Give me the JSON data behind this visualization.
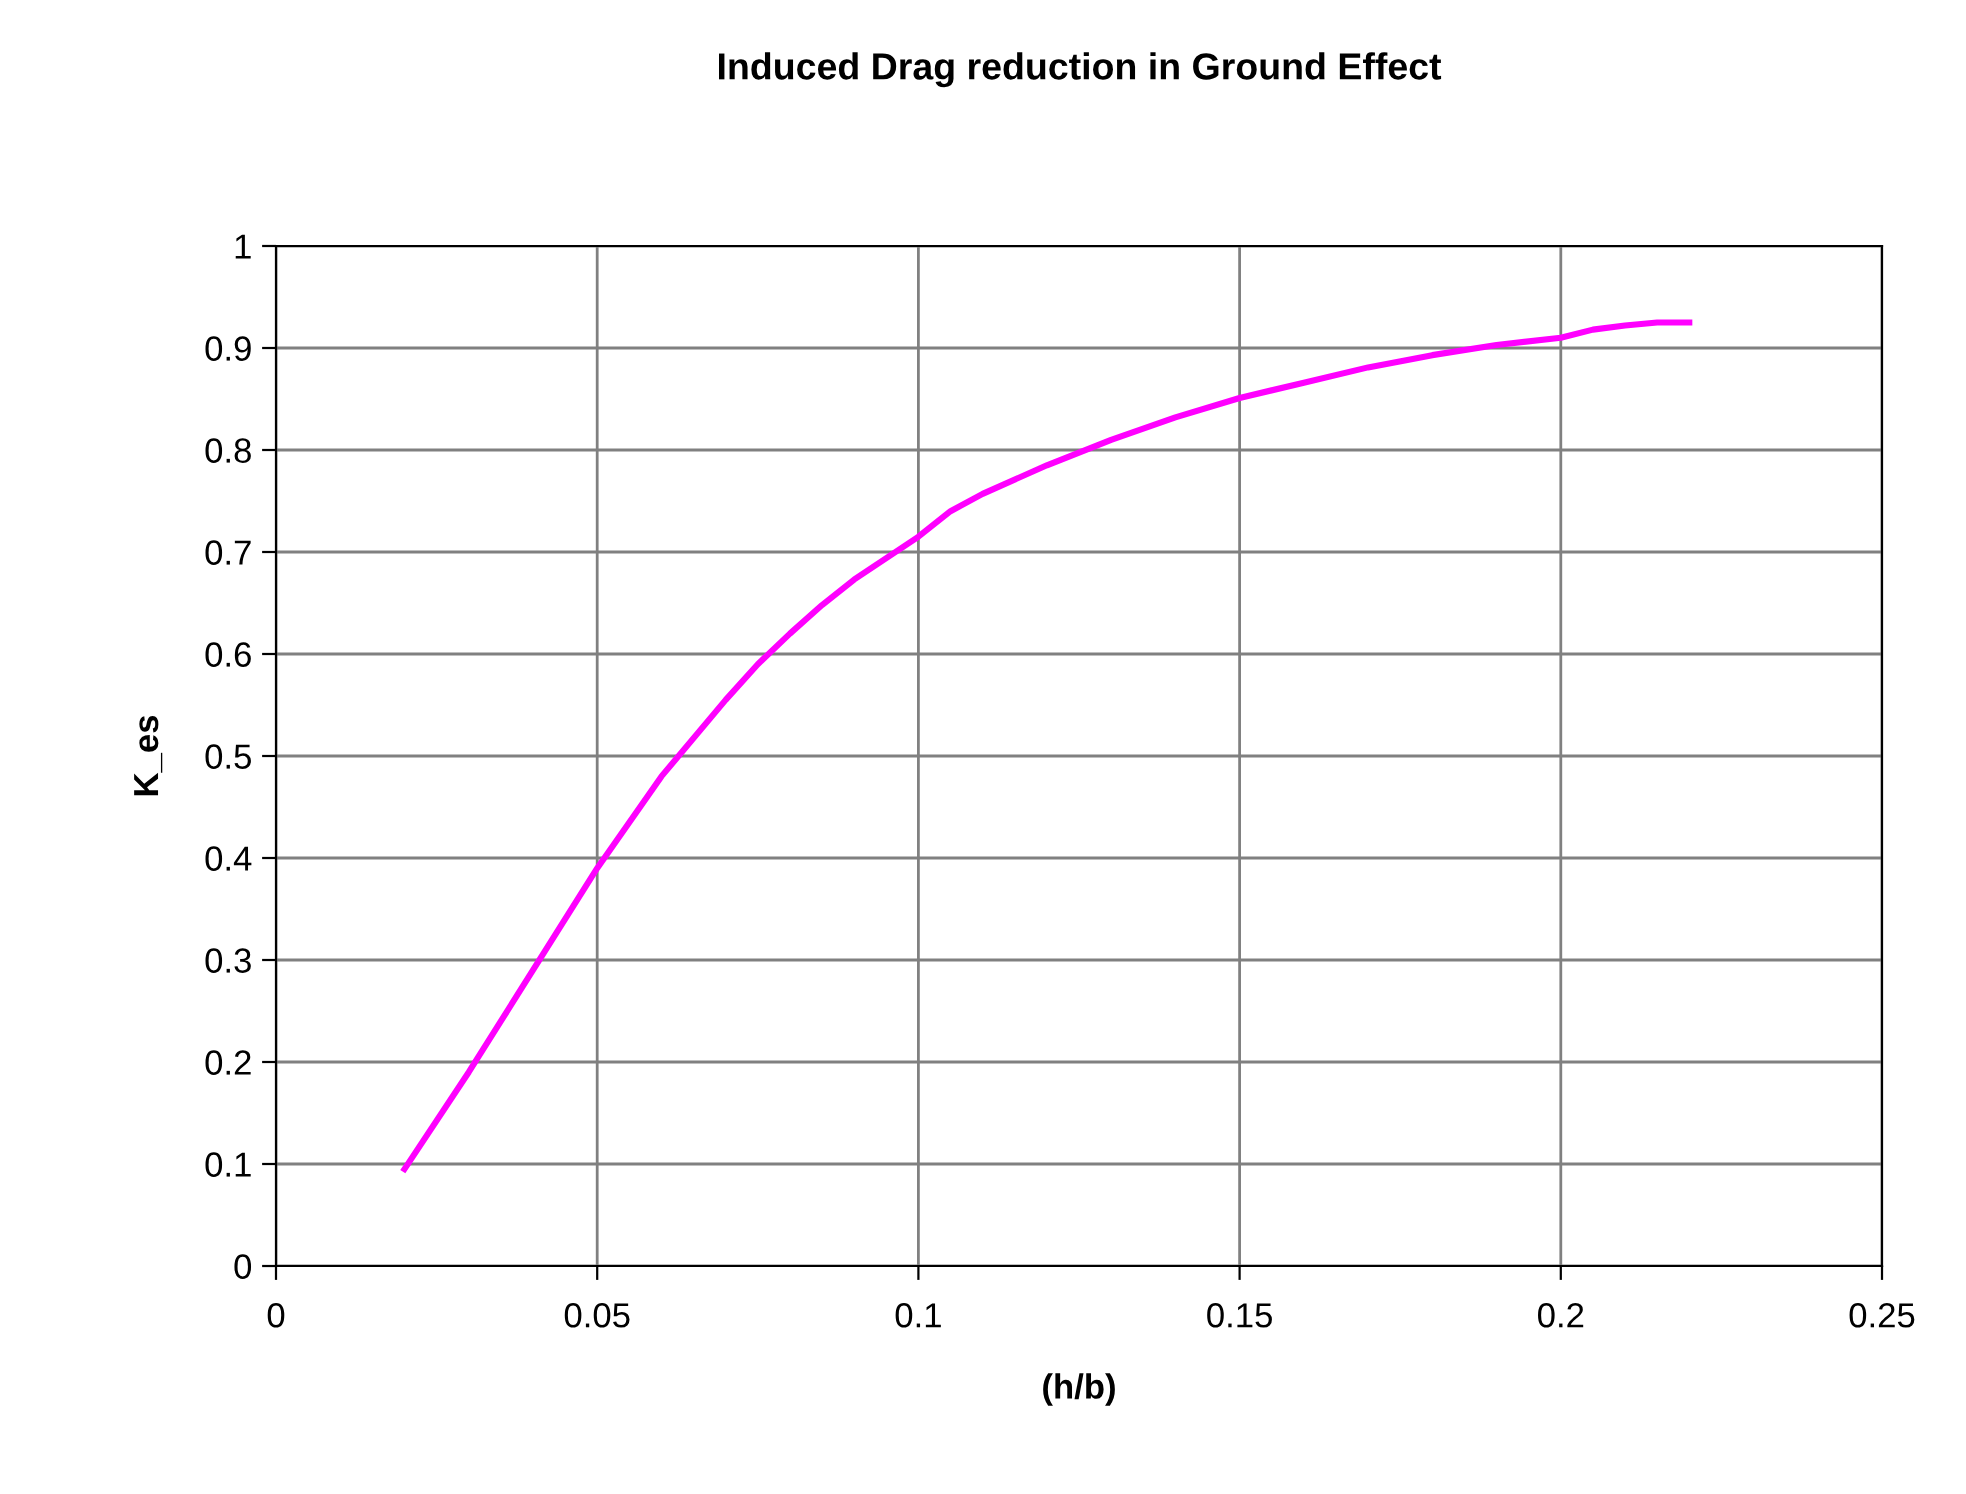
{
  "chart_data": {
    "type": "line",
    "title": "Induced Drag reduction in Ground Effect",
    "xlabel": "(h/b)",
    "ylabel": "K_es",
    "x": [
      0.02,
      0.03,
      0.04,
      0.045,
      0.05,
      0.06,
      0.07,
      0.075,
      0.08,
      0.085,
      0.09,
      0.1,
      0.105,
      0.11,
      0.12,
      0.13,
      0.14,
      0.15,
      0.16,
      0.17,
      0.18,
      0.19,
      0.2,
      0.205,
      0.21,
      0.215,
      0.22
    ],
    "series": [
      {
        "color": "#ff00ff",
        "values": [
          0.095,
          0.19,
          0.29,
          0.34,
          0.39,
          0.48,
          0.555,
          0.59,
          0.62,
          0.648,
          0.673,
          0.715,
          0.74,
          0.757,
          0.785,
          0.81,
          0.832,
          0.851,
          0.866,
          0.881,
          0.893,
          0.903,
          0.91,
          0.918,
          0.922,
          0.925,
          0.925
        ]
      }
    ],
    "xlim": [
      0,
      0.25
    ],
    "xticks": [
      0,
      0.05,
      0.1,
      0.15,
      0.2,
      0.25
    ],
    "ylim": [
      0,
      1
    ],
    "yticks": [
      0,
      0.1,
      0.2,
      0.3,
      0.4,
      0.5,
      0.6,
      0.7,
      0.8,
      0.9,
      1
    ],
    "grid": true,
    "marker": "none",
    "line_style": "solid"
  }
}
